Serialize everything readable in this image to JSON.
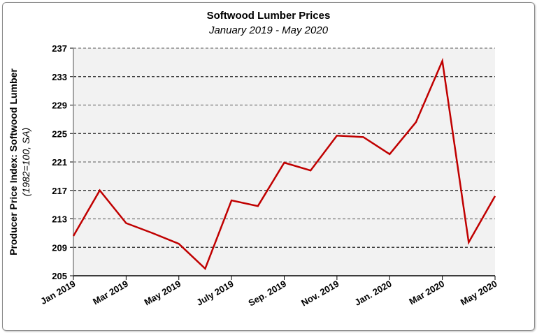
{
  "chart_data": {
    "type": "line",
    "title": "Softwood Lumber Prices",
    "subtitle": "January 2019 - May 2020",
    "ylabel": "Producer Price Index: Softwood Lumber",
    "ylabel_sub": "(1982=100, SA)",
    "xlabel": "",
    "ylim": [
      205,
      237
    ],
    "yticks": [
      205,
      209,
      213,
      217,
      221,
      225,
      229,
      233,
      237
    ],
    "xtick_labels": [
      "Jan 2019",
      "Mar 2019",
      "May 2019",
      "July 2019",
      "Sep. 2019",
      "Nov. 2019",
      "Jan. 2020",
      "Mar 2020",
      "May 2020"
    ],
    "x": [
      "2019-01",
      "2019-02",
      "2019-03",
      "2019-04",
      "2019-05",
      "2019-06",
      "2019-07",
      "2019-08",
      "2019-09",
      "2019-10",
      "2019-11",
      "2019-12",
      "2020-01",
      "2020-02",
      "2020-03",
      "2020-04",
      "2020-05"
    ],
    "series": [
      {
        "values": [
          210.6,
          217.0,
          212.4,
          211.0,
          209.5,
          206.0,
          215.6,
          214.8,
          220.9,
          219.8,
          224.7,
          224.5,
          222.1,
          226.6,
          235.2,
          209.7,
          216.2
        ],
        "color": "#c00000"
      }
    ],
    "grid": "horizontal dashed",
    "plot_background": "#f2f2f2",
    "legend": "none"
  }
}
